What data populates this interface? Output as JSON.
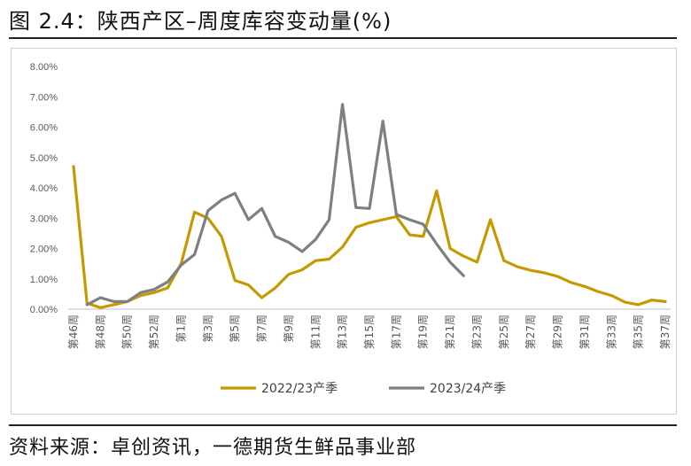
{
  "header": {
    "title": "图 2.4：陕西产区–周度库容变动量(%)"
  },
  "footer": {
    "source": "资料来源：卓创资讯，一德期货生鲜品事业部"
  },
  "chart_data": {
    "type": "line",
    "title": "",
    "xlabel": "",
    "ylabel": "",
    "ylim": [
      0,
      8
    ],
    "y_unit": "%",
    "grid": false,
    "legend_position": "bottom",
    "y_ticks": [
      "0.00%",
      "1.00%",
      "2.00%",
      "3.00%",
      "4.00%",
      "5.00%",
      "6.00%",
      "7.00%",
      "8.00%"
    ],
    "x": [
      "第46周",
      "第47周",
      "第48周",
      "第49周",
      "第50周",
      "第51周",
      "第52周",
      "第53周",
      "第1周",
      "第2周",
      "第3周",
      "第4周",
      "第5周",
      "第6周",
      "第7周",
      "第8周",
      "第9周",
      "第10周",
      "第11周",
      "第12周",
      "第13周",
      "第14周",
      "第15周",
      "第16周",
      "第17周",
      "第18周",
      "第19周",
      "第20周",
      "第21周",
      "第22周",
      "第23周",
      "第24周",
      "第25周",
      "第26周",
      "第27周",
      "第28周",
      "第29周",
      "第30周",
      "第31周",
      "第32周",
      "第33周",
      "第34周",
      "第35周",
      "第36周",
      "第37周"
    ],
    "x_tick_labels": [
      "第46周",
      "第48周",
      "第50周",
      "第52周",
      "第1周",
      "第3周",
      "第5周",
      "第7周",
      "第9周",
      "第11周",
      "第13周",
      "第15周",
      "第17周",
      "第19周",
      "第21周",
      "第23周",
      "第25周",
      "第27周",
      "第29周",
      "第31周",
      "第33周",
      "第35周",
      "第37周"
    ],
    "series": [
      {
        "name": "2022/23产季",
        "color": "#c49a00",
        "values": [
          4.7,
          0.2,
          0.05,
          0.15,
          0.25,
          0.45,
          0.55,
          0.7,
          1.5,
          3.2,
          3.0,
          2.4,
          0.95,
          0.8,
          0.38,
          0.7,
          1.15,
          1.3,
          1.6,
          1.65,
          2.05,
          2.7,
          2.85,
          2.95,
          3.05,
          2.45,
          2.4,
          3.9,
          2.0,
          1.75,
          1.55,
          2.95,
          1.6,
          1.4,
          1.28,
          1.2,
          1.08,
          0.88,
          0.75,
          0.58,
          0.45,
          0.23,
          0.15,
          0.3,
          0.25
        ]
      },
      {
        "name": "2023/24产季",
        "color": "#7f7f7f",
        "values": [
          null,
          0.15,
          0.38,
          0.25,
          0.25,
          0.55,
          0.65,
          0.9,
          1.45,
          1.8,
          3.25,
          3.6,
          3.82,
          2.95,
          3.32,
          2.4,
          2.2,
          1.9,
          2.3,
          2.95,
          6.75,
          3.35,
          3.32,
          6.2,
          3.12,
          2.95,
          2.8,
          2.15,
          1.55,
          1.1,
          null,
          null,
          null,
          null,
          null,
          null,
          null,
          null,
          null,
          null,
          null,
          null,
          null,
          null,
          null
        ]
      }
    ]
  }
}
